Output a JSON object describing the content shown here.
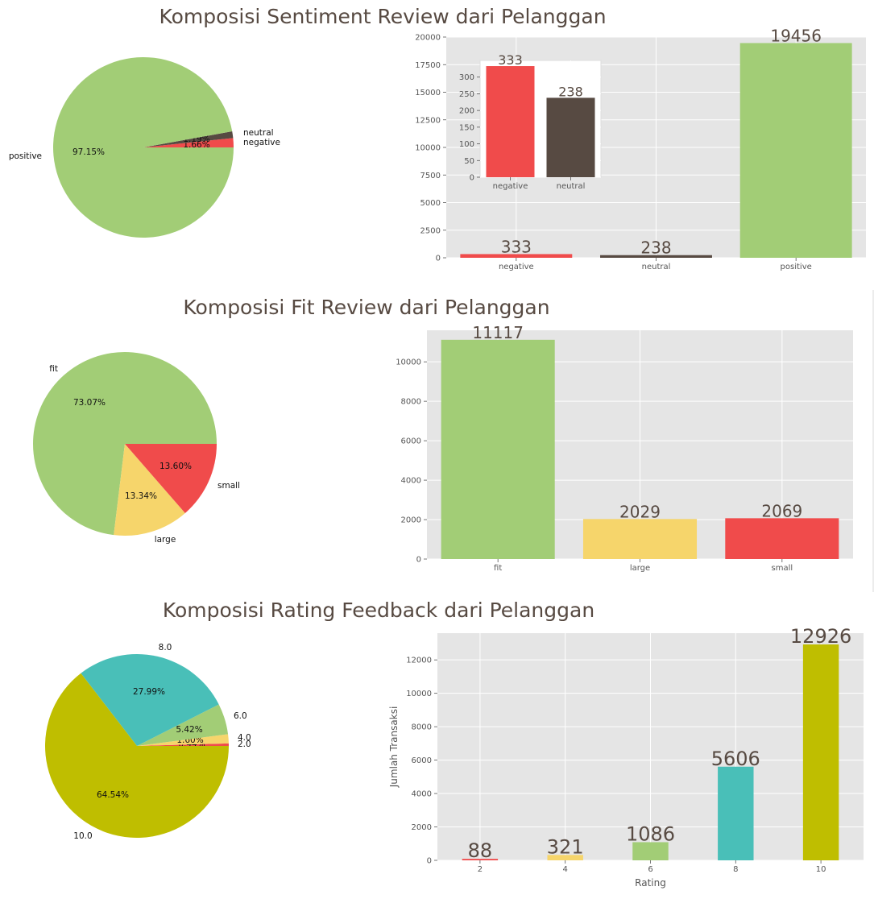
{
  "colors": {
    "red": "#f04b4b",
    "dark": "#574a42",
    "green": "#a2cd76",
    "yellow": "#f6d56b",
    "teal": "#49bfb8",
    "olive": "#bfbe00",
    "title_text": "#574a42",
    "grid_bg": "#e5e5e5"
  },
  "chart_data": [
    {
      "id": "sentiment-pie",
      "type": "pie",
      "title": "Komposisi Sentiment Review dari Pelanggan",
      "labels": [
        "negative",
        "neutral",
        "positive"
      ],
      "values": [
        333,
        238,
        19456
      ],
      "pct_labels": [
        "1.66%",
        "1.19%",
        "97.15%"
      ],
      "colors": [
        "#f04b4b",
        "#574a42",
        "#a2cd76"
      ]
    },
    {
      "id": "sentiment-bar",
      "type": "bar",
      "categories": [
        "negative",
        "neutral",
        "positive"
      ],
      "values": [
        333,
        238,
        19456
      ],
      "colors": [
        "#f04b4b",
        "#574a42",
        "#a2cd76"
      ],
      "ylim": [
        0,
        20000
      ],
      "yticks": [
        0,
        2500,
        5000,
        7500,
        10000,
        12500,
        15000,
        17500,
        20000
      ],
      "grid": true,
      "inset": {
        "type": "bar",
        "categories": [
          "negative",
          "neutral"
        ],
        "values": [
          333,
          238
        ],
        "colors": [
          "#f04b4b",
          "#574a42"
        ],
        "ylim": [
          0,
          350
        ],
        "yticks": [
          0,
          50,
          100,
          150,
          200,
          250,
          300
        ]
      }
    },
    {
      "id": "fit-pie",
      "type": "pie",
      "title": "Komposisi Fit Review dari Pelanggan",
      "labels": [
        "fit",
        "large",
        "small"
      ],
      "values": [
        11117,
        2029,
        2069
      ],
      "pct_labels": [
        "73.07%",
        "13.34%",
        "13.60%"
      ],
      "colors": [
        "#a2cd76",
        "#f6d56b",
        "#f04b4b"
      ]
    },
    {
      "id": "fit-bar",
      "type": "bar",
      "categories": [
        "fit",
        "large",
        "small"
      ],
      "values": [
        11117,
        2029,
        2069
      ],
      "colors": [
        "#a2cd76",
        "#f6d56b",
        "#f04b4b"
      ],
      "ylim": [
        0,
        11600
      ],
      "yticks": [
        0,
        2000,
        4000,
        6000,
        8000,
        10000
      ],
      "grid": true
    },
    {
      "id": "rating-pie",
      "type": "pie",
      "title": "Komposisi Rating Feedback dari Pelanggan",
      "labels": [
        "2.0",
        "4.0",
        "6.0",
        "8.0",
        "10.0"
      ],
      "values": [
        88,
        321,
        1086,
        5606,
        12926
      ],
      "pct_labels": [
        "0.44%",
        "1.60%",
        "5.42%",
        "27.99%",
        "64.54%"
      ],
      "colors": [
        "#f04b4b",
        "#f6d56b",
        "#a2cd76",
        "#49bfb8",
        "#bfbe00"
      ]
    },
    {
      "id": "rating-bar",
      "type": "bar",
      "categories": [
        "2",
        "4",
        "6",
        "8",
        "10"
      ],
      "values": [
        88,
        321,
        1086,
        5606,
        12926
      ],
      "colors": [
        "#f04b4b",
        "#f6d56b",
        "#a2cd76",
        "#49bfb8",
        "#bfbe00"
      ],
      "ylim": [
        0,
        13600
      ],
      "yticks": [
        0,
        2000,
        4000,
        6000,
        8000,
        10000,
        12000
      ],
      "xlabel": "Rating",
      "ylabel": "Jumlah Transaksi",
      "grid": true
    }
  ]
}
